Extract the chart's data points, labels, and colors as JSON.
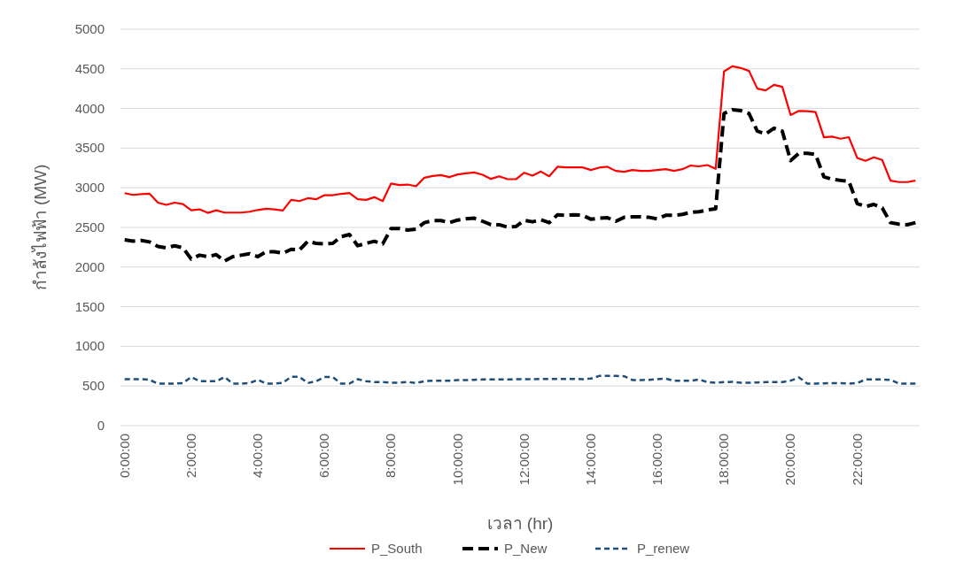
{
  "chart_data": {
    "type": "line",
    "xlabel": "เวลา (hr)",
    "ylabel": "กำลังไฟฟ้า (MW)",
    "x": [
      0,
      0.25,
      0.5,
      0.75,
      1,
      1.25,
      1.5,
      1.75,
      2,
      2.25,
      2.5,
      2.75,
      3,
      3.25,
      3.5,
      3.75,
      4,
      4.25,
      4.5,
      4.75,
      5,
      5.25,
      5.5,
      5.75,
      6,
      6.25,
      6.5,
      6.75,
      7,
      7.25,
      7.5,
      7.75,
      8,
      8.25,
      8.5,
      8.75,
      9,
      9.25,
      9.5,
      9.75,
      10,
      10.25,
      10.5,
      10.75,
      11,
      11.25,
      11.5,
      11.75,
      12,
      12.25,
      12.5,
      12.75,
      13,
      13.25,
      13.5,
      13.75,
      14,
      14.25,
      14.5,
      14.75,
      15,
      15.25,
      15.5,
      15.75,
      16,
      16.25,
      16.5,
      16.75,
      17,
      17.25,
      17.5,
      17.75,
      18,
      18.25,
      18.5,
      18.75,
      19,
      19.25,
      19.5,
      19.75,
      20,
      20.25,
      20.5,
      20.75,
      21,
      21.25,
      21.5,
      21.75,
      22,
      22.25,
      22.5,
      22.75,
      23,
      23.25,
      23.5,
      23.75
    ],
    "series": [
      {
        "name": "P_South",
        "color": "#ff0000",
        "line_style": "solid",
        "values": [
          2933,
          2910,
          2920,
          2925,
          2813,
          2784,
          2813,
          2795,
          2716,
          2728,
          2683,
          2716,
          2687,
          2687,
          2687,
          2698,
          2720,
          2735,
          2728,
          2713,
          2847,
          2832,
          2869,
          2855,
          2907,
          2907,
          2922,
          2933,
          2855,
          2847,
          2881,
          2832,
          3054,
          3034,
          3041,
          3019,
          3127,
          3149,
          3160,
          3134,
          3168,
          3183,
          3194,
          3164,
          3112,
          3145,
          3108,
          3108,
          3190,
          3153,
          3205,
          3145,
          3265,
          3257,
          3257,
          3257,
          3224,
          3254,
          3265,
          3213,
          3201,
          3224,
          3213,
          3213,
          3224,
          3235,
          3213,
          3235,
          3280,
          3270,
          3287,
          3239,
          4467,
          4533,
          4511,
          4474,
          4251,
          4228,
          4299,
          4273,
          3918,
          3970,
          3967,
          3955,
          3638,
          3645,
          3619,
          3638,
          3377,
          3340,
          3385,
          3351,
          3091,
          3072,
          3072,
          3091
        ]
      },
      {
        "name": "P_New",
        "color": "#000000",
        "line_style": "dashed",
        "values": [
          2343,
          2328,
          2336,
          2317,
          2261,
          2243,
          2269,
          2243,
          2101,
          2150,
          2131,
          2157,
          2075,
          2131,
          2150,
          2168,
          2131,
          2194,
          2194,
          2175,
          2224,
          2216,
          2325,
          2299,
          2292,
          2299,
          2384,
          2410,
          2269,
          2299,
          2325,
          2292,
          2485,
          2485,
          2466,
          2478,
          2560,
          2586,
          2586,
          2560,
          2593,
          2608,
          2616,
          2578,
          2534,
          2534,
          2504,
          2511,
          2590,
          2571,
          2597,
          2560,
          2660,
          2653,
          2660,
          2653,
          2604,
          2616,
          2623,
          2578,
          2627,
          2634,
          2634,
          2627,
          2608,
          2653,
          2653,
          2664,
          2690,
          2698,
          2720,
          2735,
          3937,
          3985,
          3974,
          3937,
          3714,
          3677,
          3751,
          3714,
          3342,
          3435,
          3435,
          3420,
          3138,
          3108,
          3093,
          3080,
          2801,
          2764,
          2790,
          2746,
          2560,
          2541,
          2534,
          2560
        ]
      },
      {
        "name": "P_renew",
        "color": "#1f4e79",
        "line_style": "dashed",
        "values": [
          586,
          586,
          586,
          578,
          530,
          530,
          530,
          537,
          613,
          560,
          560,
          560,
          613,
          530,
          530,
          537,
          578,
          530,
          530,
          541,
          616,
          616,
          537,
          560,
          613,
          613,
          530,
          530,
          586,
          560,
          549,
          549,
          541,
          541,
          552,
          537,
          560,
          567,
          567,
          567,
          575,
          575,
          578,
          582,
          582,
          582,
          582,
          586,
          586,
          586,
          590,
          590,
          590,
          590,
          590,
          586,
          593,
          627,
          627,
          627,
          623,
          575,
          575,
          578,
          586,
          593,
          567,
          567,
          567,
          582,
          549,
          541,
          549,
          552,
          541,
          541,
          545,
          549,
          549,
          549,
          567,
          608,
          530,
          530,
          534,
          537,
          537,
          530,
          537,
          582,
          582,
          582,
          578,
          530,
          530,
          530
        ]
      }
    ],
    "xlim": [
      -0.125,
      23.875
    ],
    "xticks": [
      {
        "value": 0,
        "label": "0:00:00"
      },
      {
        "value": 2,
        "label": "2:00:00"
      },
      {
        "value": 4,
        "label": "4:00:00"
      },
      {
        "value": 6,
        "label": "6:00:00"
      },
      {
        "value": 8,
        "label": "8:00:00"
      },
      {
        "value": 10,
        "label": "10:00:00"
      },
      {
        "value": 12,
        "label": "12:00:00"
      },
      {
        "value": 14,
        "label": "14:00:00"
      },
      {
        "value": 16,
        "label": "16:00:00"
      },
      {
        "value": 18,
        "label": "18:00:00"
      },
      {
        "value": 20,
        "label": "20:00:00"
      },
      {
        "value": 22,
        "label": "22:00:00"
      }
    ],
    "ylim": [
      0,
      5000
    ],
    "yticks": [
      0,
      500,
      1000,
      1500,
      2000,
      2500,
      3000,
      3500,
      4000,
      4500,
      5000
    ],
    "grid": "y",
    "legend": "bottom",
    "marker": "none"
  }
}
